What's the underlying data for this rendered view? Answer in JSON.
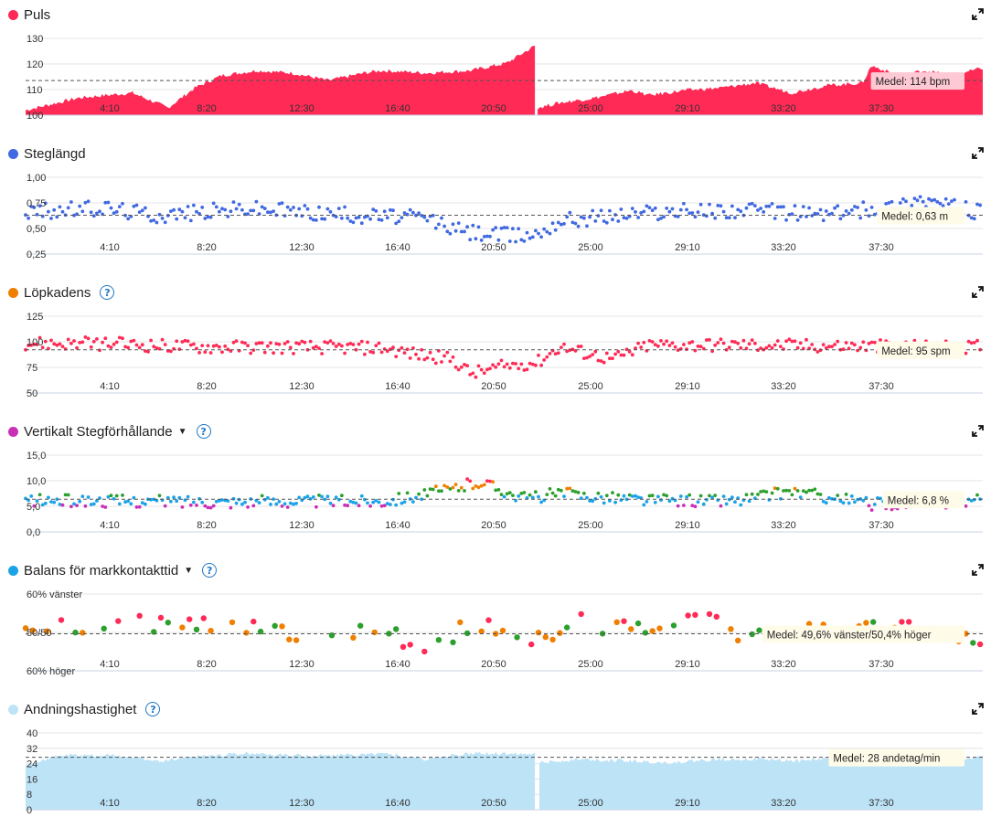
{
  "x_ticks": [
    "4:10",
    "8:20",
    "12:30",
    "16:40",
    "20:50",
    "25:00",
    "29:10",
    "33:20",
    "37:30"
  ],
  "panels": [
    {
      "key": "puls",
      "title": "Puls",
      "color": "#ff2a55",
      "has_help": false,
      "has_caret": false,
      "chart_data": {
        "type": "area",
        "title": "Puls",
        "xlabel": "",
        "ylabel": "",
        "y_ticks": [
          "130",
          "120",
          "110",
          "100"
        ],
        "ylim": [
          100,
          131
        ],
        "average_value": 114,
        "average_label": "Medel: 114 bpm",
        "segments": [
          [
            [
              0,
              102
            ],
            [
              60,
              107
            ],
            [
              120,
              109
            ],
            [
              160,
              103
            ],
            [
              190,
              111
            ],
            [
              220,
              116
            ],
            [
              260,
              118
            ],
            [
              300,
              117
            ],
            [
              340,
              114
            ],
            [
              380,
              117
            ],
            [
              400,
              118
            ],
            [
              450,
              117
            ],
            [
              500,
              118
            ],
            [
              540,
              121
            ],
            [
              572,
              128
            ]
          ],
          [
            [
              575,
              103
            ],
            [
              600,
              105
            ],
            [
              640,
              107
            ],
            [
              680,
              110
            ],
            [
              700,
              108
            ],
            [
              740,
              110
            ],
            [
              780,
              111
            ],
            [
              820,
              113
            ],
            [
              860,
              109
            ],
            [
              900,
              112
            ],
            [
              940,
              113
            ],
            [
              950,
              120
            ],
            [
              980,
              116
            ],
            [
              1010,
              118
            ],
            [
              1040,
              116
            ],
            [
              1075,
              119
            ]
          ]
        ]
      }
    },
    {
      "key": "steg",
      "title": "Steglängd",
      "color": "#4169e1",
      "has_help": false,
      "has_caret": false,
      "chart_data": {
        "type": "scatter",
        "title": "Steglängd",
        "xlabel": "",
        "ylabel": "",
        "y_ticks": [
          "1,00",
          "0,75",
          "0,50",
          "0,25"
        ],
        "ylim": [
          0.25,
          1.0
        ],
        "average_value": 0.63,
        "average_label": "Medel: 0,63 m",
        "trend": [
          [
            0,
            0.66
          ],
          [
            90,
            0.7
          ],
          [
            150,
            0.63
          ],
          [
            250,
            0.7
          ],
          [
            350,
            0.64
          ],
          [
            450,
            0.6
          ],
          [
            490,
            0.47
          ],
          [
            550,
            0.43
          ],
          [
            575,
            0.45
          ],
          [
            600,
            0.58
          ],
          [
            700,
            0.66
          ],
          [
            800,
            0.68
          ],
          [
            900,
            0.64
          ],
          [
            980,
            0.72
          ],
          [
            1000,
            0.8
          ],
          [
            1075,
            0.65
          ]
        ],
        "spread": 0.08,
        "colors": [
          "#4169e1"
        ]
      }
    },
    {
      "key": "kadens",
      "title": "Löpkadens",
      "color": "#f07f00",
      "has_help": true,
      "has_caret": false,
      "chart_data": {
        "type": "scatter",
        "title": "Löpkadens",
        "xlabel": "",
        "ylabel": "",
        "y_ticks": [
          "125",
          "100",
          "75",
          "50"
        ],
        "ylim": [
          50,
          130
        ],
        "average_value": 95,
        "average_label": "Medel: 95 spm",
        "trend": [
          [
            0,
            102
          ],
          [
            100,
            101
          ],
          [
            200,
            98
          ],
          [
            300,
            98
          ],
          [
            400,
            97
          ],
          [
            440,
            90
          ],
          [
            480,
            85
          ],
          [
            500,
            70
          ],
          [
            540,
            78
          ],
          [
            575,
            82
          ],
          [
            600,
            98
          ],
          [
            660,
            85
          ],
          [
            700,
            100
          ],
          [
            800,
            100
          ],
          [
            900,
            99
          ],
          [
            1000,
            98
          ],
          [
            1075,
            98
          ]
        ],
        "spread": 7,
        "colors": [
          "#ff2a55"
        ]
      }
    },
    {
      "key": "vert",
      "title": "Vertikalt Stegförhållande",
      "color": "#c930b5",
      "has_help": true,
      "has_caret": true,
      "chart_data": {
        "type": "scatter",
        "title": "Vertikalt Stegförhållande",
        "xlabel": "",
        "ylabel": "",
        "y_ticks": [
          "15,0",
          "10,0",
          "5,0",
          "0,0"
        ],
        "ylim": [
          0,
          16
        ],
        "average_value": 6.8,
        "average_label": "Medel: 6,8 %",
        "trend": [
          [
            0,
            6.5
          ],
          [
            200,
            6.3
          ],
          [
            400,
            6.4
          ],
          [
            470,
            8.5
          ],
          [
            510,
            10.5
          ],
          [
            560,
            7
          ],
          [
            600,
            8
          ],
          [
            700,
            6.6
          ],
          [
            800,
            6.5
          ],
          [
            860,
            8.5
          ],
          [
            950,
            5.8
          ],
          [
            1075,
            6.5
          ]
        ],
        "spread": 1.3,
        "colors": [
          "#c930b5",
          "#1ba3e8",
          "#2ca02c",
          "#f07f00",
          "#ff2a55"
        ]
      }
    },
    {
      "key": "balans",
      "title": "Balans för markkontakttid",
      "color": "#1ba3e8",
      "has_help": true,
      "has_caret": true,
      "chart_data": {
        "type": "scatter",
        "title": "Balans för markkontakttid",
        "xlabel": "",
        "ylabel": "",
        "y_ticks": [
          "60% vänster",
          "50/50",
          "60% höger"
        ],
        "ylim": [
          -11,
          11
        ],
        "average_value": -0.4,
        "average_label": "Medel: 49,6% vänster/50,4% höger",
        "trend": [
          [
            0,
            0
          ],
          [
            100,
            3
          ],
          [
            200,
            2
          ],
          [
            300,
            0
          ],
          [
            400,
            0
          ],
          [
            450,
            -4
          ],
          [
            500,
            2
          ],
          [
            540,
            1
          ],
          [
            570,
            -2
          ],
          [
            620,
            3
          ],
          [
            700,
            0
          ],
          [
            760,
            4
          ],
          [
            800,
            0
          ],
          [
            900,
            0
          ],
          [
            1000,
            1
          ],
          [
            1075,
            -2
          ]
        ],
        "spread": 2.5,
        "colors": [
          "#ff2a55",
          "#f07f00",
          "#2ca02c"
        ]
      }
    },
    {
      "key": "andning",
      "title": "Andningshastighet",
      "color": "#bde3f7",
      "has_help": true,
      "has_caret": false,
      "chart_data": {
        "type": "area",
        "title": "Andningshastighet",
        "xlabel": "",
        "ylabel": "",
        "y_ticks": [
          "40",
          "32",
          "24",
          "16",
          "8",
          "0"
        ],
        "ylim": [
          0,
          41
        ],
        "average_value": 28,
        "average_label": "Medel: 28 andetag/min",
        "segments": [
          [
            [
              0,
              24
            ],
            [
              40,
              29
            ],
            [
              100,
              29
            ],
            [
              150,
              26
            ],
            [
              200,
              29
            ],
            [
              250,
              30
            ],
            [
              300,
              29
            ],
            [
              350,
              29
            ],
            [
              400,
              30
            ],
            [
              450,
              27
            ],
            [
              500,
              30
            ],
            [
              572,
              30
            ]
          ],
          [
            [
              577,
              25
            ],
            [
              620,
              27
            ],
            [
              680,
              26
            ],
            [
              720,
              25
            ],
            [
              780,
              27
            ],
            [
              820,
              27
            ],
            [
              870,
              26
            ],
            [
              910,
              28
            ],
            [
              960,
              29
            ],
            [
              1000,
              28
            ],
            [
              1040,
              27
            ],
            [
              1075,
              28
            ]
          ]
        ]
      }
    }
  ]
}
